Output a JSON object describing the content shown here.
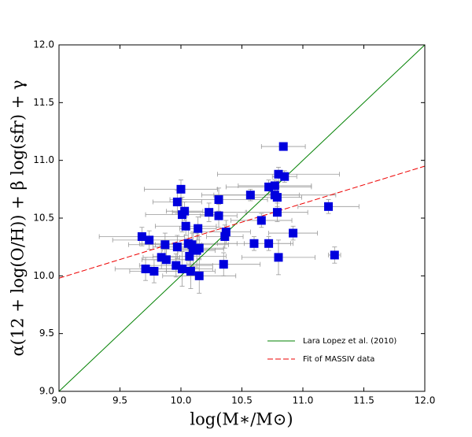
{
  "chart_data": {
    "type": "scatter",
    "xlabel": "log(M∗/M⊙)",
    "ylabel": "α(12 + log(O/H)) + β log(sfr) + γ",
    "xlim": [
      9.0,
      12.0
    ],
    "ylim": [
      9.0,
      12.0
    ],
    "xticks": [
      {
        "value": 9,
        "label": "9.0"
      },
      9.5,
      {
        "value": 10,
        "label": "10.0"
      },
      10.5,
      {
        "value": 11,
        "label": "11.0"
      },
      11.5,
      {
        "value": 12,
        "label": "12.0"
      }
    ],
    "yticks": [
      {
        "value": 9,
        "label": "9.0"
      },
      9.5,
      {
        "value": 10,
        "label": "10.0"
      },
      10.5,
      {
        "value": 11,
        "label": "11.0"
      },
      11.5,
      {
        "value": 12,
        "label": "12.0"
      }
    ],
    "legend_position": "lower right",
    "points": {
      "color": "#0000dd",
      "error_color": "#999999",
      "x": [
        10.84,
        10.8,
        10.85,
        10.0,
        10.72,
        10.77,
        10.57,
        10.77,
        10.79,
        10.31,
        9.97,
        10.01,
        10.03,
        10.23,
        10.31,
        10.79,
        10.66,
        11.21,
        10.37,
        10.36,
        10.92,
        10.04,
        10.14,
        9.68,
        9.74,
        9.87,
        9.97,
        10.06,
        10.09,
        10.1,
        10.13,
        10.15,
        10.6,
        10.72,
        9.84,
        9.88,
        10.07,
        10.35,
        10.8,
        11.26,
        9.71,
        9.78,
        9.96,
        10.01,
        10.08,
        10.15
      ],
      "y": [
        11.12,
        10.88,
        10.86,
        10.75,
        10.77,
        10.78,
        10.7,
        10.7,
        10.68,
        10.66,
        10.64,
        10.53,
        10.56,
        10.55,
        10.52,
        10.55,
        10.48,
        10.6,
        10.38,
        10.34,
        10.37,
        10.43,
        10.41,
        10.34,
        10.31,
        10.27,
        10.25,
        10.28,
        10.27,
        10.23,
        10.22,
        10.24,
        10.28,
        10.28,
        10.16,
        10.14,
        10.17,
        10.1,
        10.16,
        10.18,
        10.06,
        10.04,
        10.09,
        10.06,
        10.04,
        10.0
      ],
      "xerr": [
        0.18,
        0.5,
        0.1,
        0.3,
        0.35,
        0.3,
        0.4,
        0.5,
        0.2,
        0.4,
        0.2,
        0.3,
        0.15,
        0.3,
        0.15,
        0.25,
        0.25,
        0.25,
        0.2,
        0.15,
        0.2,
        0.25,
        0.15,
        0.35,
        0.3,
        0.3,
        0.2,
        0.4,
        0.3,
        0.25,
        0.15,
        0.2,
        0.3,
        0.2,
        0.15,
        0.2,
        0.3,
        0.3,
        0.3,
        0.05,
        0.25,
        0.2,
        0.3,
        0.25,
        0.2,
        0.3
      ],
      "yerr": [
        0.03,
        0.06,
        0.05,
        0.08,
        0.06,
        0.05,
        0.05,
        0.05,
        0.08,
        0.1,
        0.1,
        0.15,
        0.08,
        0.08,
        0.1,
        0.08,
        0.06,
        0.06,
        0.1,
        0.1,
        0.06,
        0.08,
        0.1,
        0.08,
        0.08,
        0.1,
        0.1,
        0.15,
        0.1,
        0.15,
        0.15,
        0.1,
        0.06,
        0.06,
        0.1,
        0.1,
        0.1,
        0.1,
        0.15,
        0.07,
        0.1,
        0.1,
        0.1,
        0.15,
        0.15,
        0.15
      ]
    },
    "series": [
      {
        "name": "Lara Lopez et al. (2010)",
        "color": "#008000",
        "dashed": false,
        "x": [
          9.0,
          12.0
        ],
        "values": [
          9.0,
          12.0
        ]
      },
      {
        "name": "Fit of MASSIV data",
        "color": "#ee0000",
        "dashed": true,
        "x": [
          9.0,
          12.0
        ],
        "values": [
          9.98,
          10.95
        ]
      }
    ]
  }
}
